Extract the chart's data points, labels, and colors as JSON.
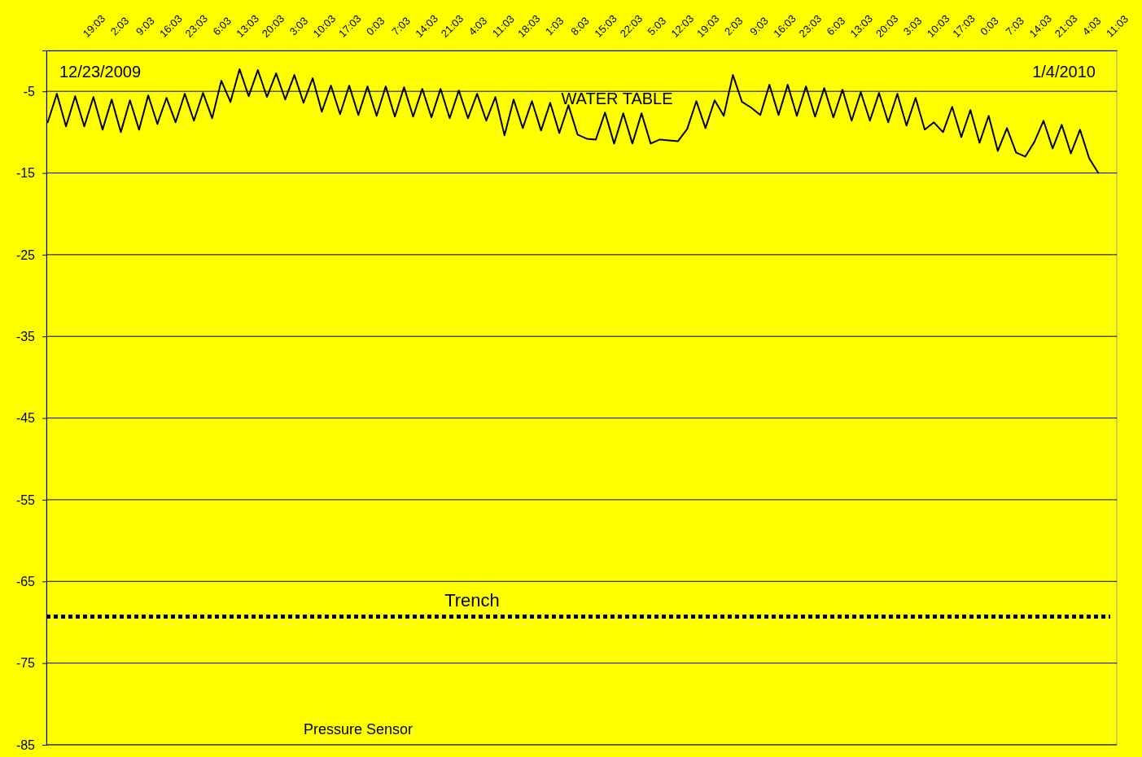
{
  "chart_data": {
    "type": "line",
    "x": [
      "2009-12-23T06:30",
      "2009-12-23T09:00",
      "2009-12-23T11:30",
      "2009-12-23T14:00",
      "2009-12-23T16:30",
      "2009-12-23T19:00",
      "2009-12-23T21:30",
      "2009-12-24T00:00",
      "2009-12-24T02:30",
      "2009-12-24T05:00",
      "2009-12-24T07:30",
      "2009-12-24T10:00",
      "2009-12-24T12:30",
      "2009-12-24T15:00",
      "2009-12-24T17:30",
      "2009-12-24T20:00",
      "2009-12-24T22:30",
      "2009-12-25T01:00",
      "2009-12-25T03:30",
      "2009-12-25T06:00",
      "2009-12-25T08:30",
      "2009-12-25T11:00",
      "2009-12-25T13:30",
      "2009-12-25T16:00",
      "2009-12-25T18:30",
      "2009-12-25T21:00",
      "2009-12-25T23:30",
      "2009-12-26T02:00",
      "2009-12-26T04:30",
      "2009-12-26T07:00",
      "2009-12-26T09:30",
      "2009-12-26T12:00",
      "2009-12-26T14:30",
      "2009-12-26T17:00",
      "2009-12-26T19:30",
      "2009-12-26T22:00",
      "2009-12-27T00:30",
      "2009-12-27T03:00",
      "2009-12-27T05:30",
      "2009-12-27T08:00",
      "2009-12-27T10:30",
      "2009-12-27T13:00",
      "2009-12-27T15:30",
      "2009-12-27T18:00",
      "2009-12-27T20:30",
      "2009-12-27T23:00",
      "2009-12-28T01:30",
      "2009-12-28T04:00",
      "2009-12-28T06:30",
      "2009-12-28T09:00",
      "2009-12-28T11:30",
      "2009-12-28T14:00",
      "2009-12-28T16:30",
      "2009-12-28T19:00",
      "2009-12-28T21:30",
      "2009-12-29T00:00",
      "2009-12-29T02:30",
      "2009-12-29T05:00",
      "2009-12-29T07:30",
      "2009-12-29T10:00",
      "2009-12-29T12:30",
      "2009-12-29T15:00",
      "2009-12-29T17:30",
      "2009-12-29T20:00",
      "2009-12-29T22:30",
      "2009-12-30T01:00",
      "2009-12-30T03:30",
      "2009-12-30T06:00",
      "2009-12-30T08:30",
      "2009-12-30T11:00",
      "2009-12-30T13:30",
      "2009-12-30T16:00",
      "2009-12-30T18:30",
      "2009-12-30T21:00",
      "2009-12-30T23:30",
      "2009-12-31T02:00",
      "2009-12-31T04:30",
      "2009-12-31T07:00",
      "2009-12-31T09:30",
      "2009-12-31T12:00",
      "2009-12-31T14:30",
      "2009-12-31T17:00",
      "2009-12-31T19:30",
      "2009-12-31T22:00",
      "2010-01-01T00:30",
      "2010-01-01T03:00",
      "2010-01-01T05:30",
      "2010-01-01T08:00",
      "2010-01-01T10:30",
      "2010-01-01T13:00",
      "2010-01-01T15:30",
      "2010-01-01T18:00",
      "2010-01-01T20:30",
      "2010-01-01T23:00",
      "2010-01-02T01:30",
      "2010-01-02T04:00",
      "2010-01-02T06:30",
      "2010-01-02T09:00",
      "2010-01-02T11:30",
      "2010-01-02T14:00",
      "2010-01-02T16:30",
      "2010-01-02T19:00",
      "2010-01-02T21:30",
      "2010-01-03T00:00",
      "2010-01-03T02:30",
      "2010-01-03T05:00",
      "2010-01-03T07:30",
      "2010-01-03T10:00",
      "2010-01-03T12:30",
      "2010-01-03T15:00",
      "2010-01-03T17:30",
      "2010-01-03T20:00",
      "2010-01-03T22:30",
      "2010-01-04T01:00",
      "2010-01-04T03:30",
      "2010-01-04T06:00"
    ],
    "series": [
      {
        "color": "#000000",
        "values": [
          -8.8,
          -5.3,
          -9.3,
          -5.6,
          -9.3,
          -5.7,
          -9.7,
          -6.0,
          -10.0,
          -6.1,
          -9.7,
          -5.5,
          -9.0,
          -5.8,
          -8.8,
          -5.3,
          -8.6,
          -5.2,
          -8.3,
          -3.7,
          -6.3,
          -2.3,
          -5.6,
          -2.4,
          -5.7,
          -2.8,
          -6.0,
          -3.0,
          -6.4,
          -3.4,
          -7.5,
          -4.3,
          -7.8,
          -4.3,
          -7.9,
          -4.4,
          -8.0,
          -4.4,
          -8.1,
          -4.5,
          -8.1,
          -4.7,
          -8.2,
          -4.7,
          -8.3,
          -4.9,
          -8.3,
          -5.3,
          -8.6,
          -5.7,
          -10.4,
          -6.0,
          -9.5,
          -6.2,
          -9.8,
          -6.4,
          -10.1,
          -6.7,
          -10.3,
          -10.8,
          -10.9,
          -7.6,
          -11.4,
          -7.7,
          -11.4,
          -7.7,
          -11.4,
          -10.9,
          -11.0,
          -11.1,
          -9.6,
          -6.2,
          -9.5,
          -6.1,
          -8.0,
          -3.0,
          -6.3,
          -7.0,
          -7.9,
          -4.2,
          -7.9,
          -4.2,
          -8.0,
          -4.4,
          -8.1,
          -4.6,
          -8.2,
          -4.8,
          -8.6,
          -5.1,
          -8.6,
          -5.2,
          -8.8,
          -5.3,
          -9.2,
          -5.8,
          -9.7,
          -8.8,
          -10.0,
          -6.9,
          -10.6,
          -7.3,
          -11.3,
          -8.0,
          -12.3,
          -9.5,
          -12.5,
          -13.0,
          -11.2,
          -8.6,
          -12.0,
          -9.1,
          -12.6,
          -9.7,
          -13.2,
          -15.0
        ]
      }
    ],
    "xlim": [
      "2009-12-23T06:08",
      "2010-01-04T11:03"
    ],
    "xticks": [
      {
        "value": "2009-12-23T19:03",
        "label": "19:03"
      },
      {
        "value": "2009-12-24T02:03",
        "label": "2:03"
      },
      {
        "value": "2009-12-24T09:03",
        "label": "9:03"
      },
      {
        "value": "2009-12-24T16:03",
        "label": "16:03"
      },
      {
        "value": "2009-12-24T23:03",
        "label": "23:03"
      },
      {
        "value": "2009-12-25T06:03",
        "label": "6:03"
      },
      {
        "value": "2009-12-25T13:03",
        "label": "13:03"
      },
      {
        "value": "2009-12-25T20:03",
        "label": "20:03"
      },
      {
        "value": "2009-12-26T03:03",
        "label": "3:03"
      },
      {
        "value": "2009-12-26T10:03",
        "label": "10:03"
      },
      {
        "value": "2009-12-26T17:03",
        "label": "17:03"
      },
      {
        "value": "2009-12-27T00:03",
        "label": "0:03"
      },
      {
        "value": "2009-12-27T07:03",
        "label": "7:03"
      },
      {
        "value": "2009-12-27T14:03",
        "label": "14:03"
      },
      {
        "value": "2009-12-27T21:03",
        "label": "21:03"
      },
      {
        "value": "2009-12-28T04:03",
        "label": "4:03"
      },
      {
        "value": "2009-12-28T11:03",
        "label": "11:03"
      },
      {
        "value": "2009-12-28T18:03",
        "label": "18:03"
      },
      {
        "value": "2009-12-29T01:03",
        "label": "1:03"
      },
      {
        "value": "2009-12-29T08:03",
        "label": "8:03"
      },
      {
        "value": "2009-12-29T15:03",
        "label": "15:03"
      },
      {
        "value": "2009-12-29T22:03",
        "label": "22:03"
      },
      {
        "value": "2009-12-30T05:03",
        "label": "5:03"
      },
      {
        "value": "2009-12-30T12:03",
        "label": "12:03"
      },
      {
        "value": "2009-12-30T19:03",
        "label": "19:03"
      },
      {
        "value": "2009-12-31T02:03",
        "label": "2:03"
      },
      {
        "value": "2009-12-31T09:03",
        "label": "9:03"
      },
      {
        "value": "2009-12-31T16:03",
        "label": "16:03"
      },
      {
        "value": "2009-12-31T23:03",
        "label": "23:03"
      },
      {
        "value": "2010-01-01T06:03",
        "label": "6:03"
      },
      {
        "value": "2010-01-01T13:03",
        "label": "13:03"
      },
      {
        "value": "2010-01-01T20:03",
        "label": "20:03"
      },
      {
        "value": "2010-01-02T03:03",
        "label": "3:03"
      },
      {
        "value": "2010-01-02T10:03",
        "label": "10:03"
      },
      {
        "value": "2010-01-02T17:03",
        "label": "17:03"
      },
      {
        "value": "2010-01-03T00:03",
        "label": "0:03"
      },
      {
        "value": "2010-01-03T07:03",
        "label": "7:03"
      },
      {
        "value": "2010-01-03T14:03",
        "label": "14:03"
      },
      {
        "value": "2010-01-03T21:03",
        "label": "21:03"
      },
      {
        "value": "2010-01-04T04:03",
        "label": "4:03"
      },
      {
        "value": "2010-01-04T11:03",
        "label": "11:03"
      }
    ],
    "ylim": [
      -85,
      0
    ],
    "yticks": [
      -5,
      -15,
      -25,
      -35,
      -45,
      -55,
      -65,
      -75,
      -85
    ],
    "grid": "y",
    "line_style": "solid",
    "ref_lines": [
      {
        "axis": "y",
        "value": -69.3,
        "label": "Trench",
        "color": "#000000",
        "line_style": "dotted"
      }
    ],
    "annotations": [
      "12/23/2009",
      "1/4/2010",
      "WATER TABLE",
      "Pressure Sensor"
    ]
  }
}
